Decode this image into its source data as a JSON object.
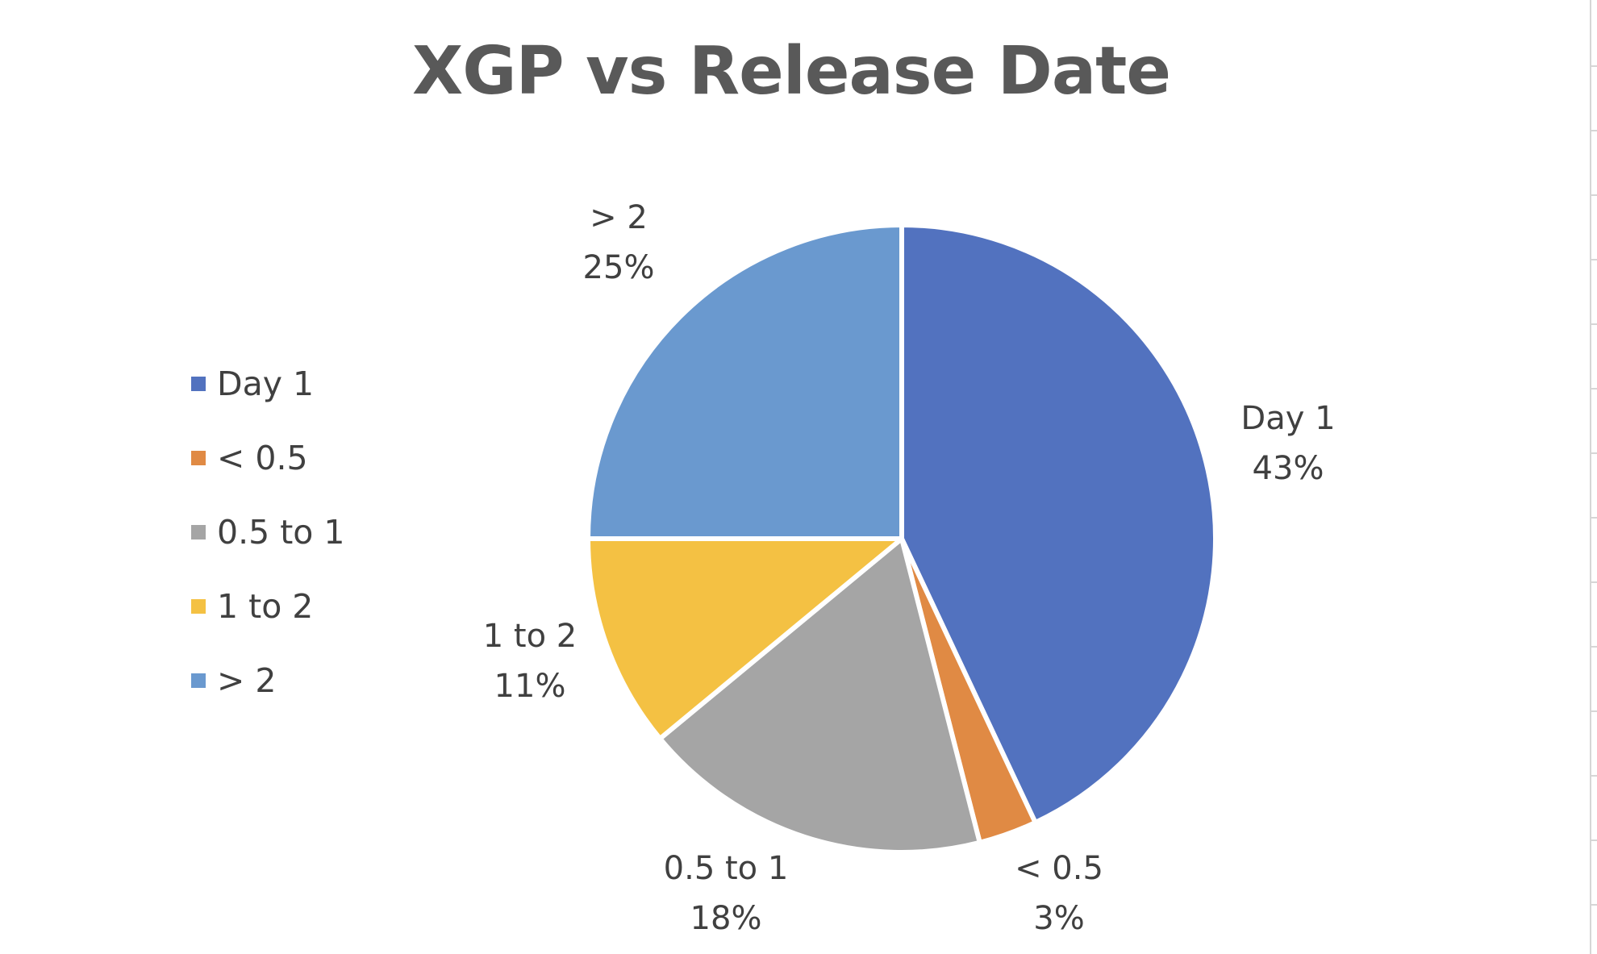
{
  "chart_data": {
    "type": "pie",
    "title": "XGP vs Release Date",
    "legend_position": "left",
    "slices": [
      {
        "label": "Day 1",
        "value": 43,
        "display": "43%",
        "color": "#5272bf"
      },
      {
        "label": "< 0.5",
        "value": 3,
        "display": "3%",
        "color": "#e08a44"
      },
      {
        "label": "0.5 to 1",
        "value": 18,
        "display": "18%",
        "color": "#a5a5a5"
      },
      {
        "label": "1 to 2",
        "value": 11,
        "display": "11%",
        "color": "#f4c143"
      },
      {
        "label": "> 2",
        "value": 25,
        "display": "25%",
        "color": "#6a99cf"
      }
    ]
  }
}
